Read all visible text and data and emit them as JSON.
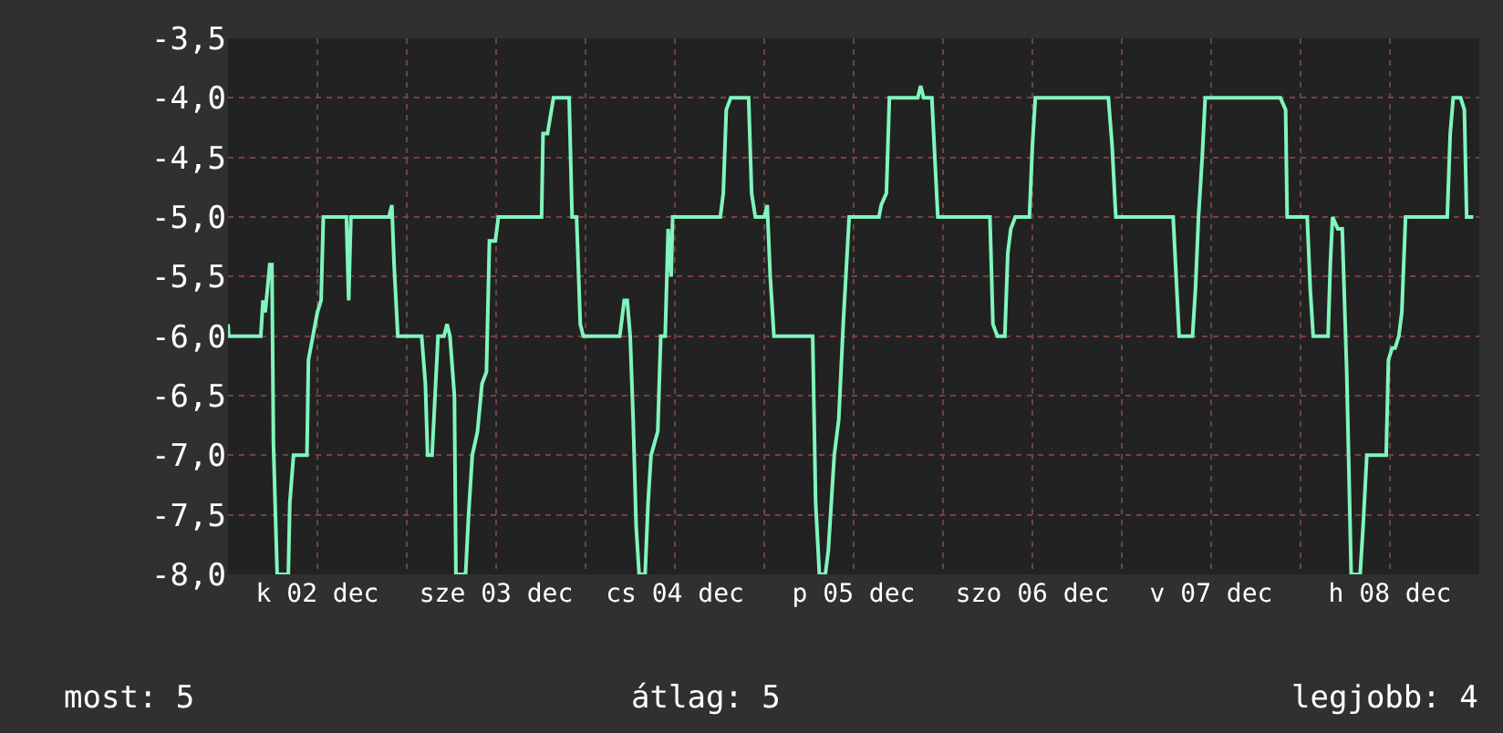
{
  "chart_data": {
    "type": "line",
    "annotations": [
      "most: 5",
      "átlag: 5",
      "legjobb: 4"
    ],
    "x": [
      "--12-02T00:00",
      "--12-02T00:06",
      "--12-02T04:24",
      "--12-02T04:42",
      "--12-02T05:00",
      "--12-02T05:36",
      "--12-02T05:54",
      "--12-02T06:06",
      "--12-02T06:36",
      "--12-02T08:06",
      "--12-02T08:18",
      "--12-02T08:48",
      "--12-02T10:36",
      "--12-02T10:48",
      "--12-02T11:24",
      "--12-02T12:00",
      "--12-02T12:30",
      "--12-02T12:48",
      "--12-02T15:54",
      "--12-02T16:12",
      "--12-02T16:30",
      "--12-02T21:36",
      "--12-02T22:00",
      "--12-02T22:18",
      "--12-02T22:48",
      "--12-03T02:00",
      "--12-03T02:30",
      "--12-03T02:48",
      "--12-03T03:24",
      "--12-03T04:12",
      "--12-03T05:00",
      "--12-03T05:24",
      "--12-03T05:48",
      "--12-03T06:24",
      "--12-03T06:36",
      "--12-03T07:54",
      "--12-03T08:18",
      "--12-03T08:48",
      "--12-03T09:30",
      "--12-03T10:06",
      "--12-03T10:42",
      "--12-03T11:06",
      "--12-03T11:54",
      "--12-03T12:18",
      "--12-03T18:06",
      "--12-03T18:18",
      "--12-03T18:54",
      "--12-03T19:42",
      "--12-03T21:48",
      "--12-03T22:12",
      "--12-03T22:48",
      "--12-03T23:18",
      "--12-03T23:42",
      "--12-04T04:36",
      "--12-04T05:12",
      "--12-04T05:36",
      "--12-04T06:00",
      "--12-04T06:24",
      "--12-04T06:48",
      "--12-04T07:12",
      "--12-04T08:00",
      "--12-04T08:24",
      "--12-04T08:48",
      "--12-04T09:42",
      "--12-04T10:06",
      "--12-04T10:42",
      "--12-04T11:06",
      "--12-04T11:30",
      "--12-04T11:42",
      "--12-04T18:06",
      "--12-04T18:30",
      "--12-04T18:54",
      "--12-04T19:30",
      "--12-04T21:54",
      "--12-04T22:18",
      "--12-04T22:48",
      "--12-05T00:00",
      "--12-05T00:24",
      "--12-05T00:48",
      "--12-05T01:18",
      "--12-05T06:30",
      "--12-05T06:54",
      "--12-05T07:24",
      "--12-05T08:12",
      "--12-05T08:36",
      "--12-05T09:24",
      "--12-05T10:00",
      "--12-05T10:36",
      "--12-05T11:24",
      "--12-05T15:24",
      "--12-05T15:42",
      "--12-05T16:24",
      "--12-05T16:48",
      "--12-05T20:36",
      "--12-05T21:00",
      "--12-05T21:24",
      "--12-05T22:30",
      "--12-05T22:54",
      "--12-05T23:18",
      "--12-06T06:18",
      "--12-06T06:42",
      "--12-06T07:18",
      "--12-06T08:18",
      "--12-06T08:42",
      "--12-06T09:06",
      "--12-06T09:42",
      "--12-06T11:36",
      "--12-06T12:00",
      "--12-06T12:24",
      "--12-06T22:12",
      "--12-06T22:42",
      "--12-06T23:12",
      "--12-07T06:54",
      "--12-07T07:18",
      "--12-07T07:42",
      "--12-07T09:30",
      "--12-07T09:54",
      "--12-07T10:18",
      "--12-07T10:48",
      "--12-07T11:12",
      "--12-07T21:18",
      "--12-07T22:00",
      "--12-07T22:12",
      "--12-08T00:54",
      "--12-08T01:18",
      "--12-08T01:42",
      "--12-08T03:42",
      "--12-08T04:00",
      "--12-08T04:18",
      "--12-08T05:00",
      "--12-08T05:36",
      "--12-08T06:12",
      "--12-08T06:48",
      "--12-08T08:00",
      "--12-08T08:24",
      "--12-08T08:54",
      "--12-08T11:30",
      "--12-08T11:48",
      "--12-08T12:18",
      "--12-08T12:42",
      "--12-08T13:12",
      "--12-08T13:36",
      "--12-08T14:06",
      "--12-08T19:42",
      "--12-08T20:06",
      "--12-08T20:30",
      "--12-08T21:30",
      "--12-08T22:00",
      "--12-08T22:18",
      "--12-08T23:12"
    ],
    "values": [
      -5.9,
      -6.0,
      -6.0,
      -5.7,
      -5.8,
      -5.4,
      -5.4,
      -6.9,
      -8.0,
      -8.0,
      -7.4,
      -7.0,
      -7.0,
      -6.2,
      -6.0,
      -5.8,
      -5.7,
      -5.0,
      -5.0,
      -5.7,
      -5.0,
      -5.0,
      -4.9,
      -5.4,
      -6.0,
      -6.0,
      -6.4,
      -7.0,
      -7.0,
      -6.0,
      -6.0,
      -5.9,
      -6.0,
      -6.5,
      -8.0,
      -8.0,
      -7.5,
      -7.0,
      -6.8,
      -6.4,
      -6.3,
      -5.2,
      -5.2,
      -5.0,
      -5.0,
      -4.3,
      -4.3,
      -4.0,
      -4.0,
      -5.0,
      -5.0,
      -5.9,
      -6.0,
      -6.0,
      -5.7,
      -5.7,
      -6.0,
      -6.7,
      -7.6,
      -8.0,
      -8.0,
      -7.4,
      -7.0,
      -6.8,
      -6.0,
      -6.0,
      -5.1,
      -5.5,
      -5.0,
      -5.0,
      -4.8,
      -4.1,
      -4.0,
      -4.0,
      -4.8,
      -5.0,
      -5.0,
      -4.9,
      -5.5,
      -6.0,
      -6.0,
      -7.4,
      -8.0,
      -8.0,
      -7.8,
      -7.0,
      -6.7,
      -5.9,
      -5.0,
      -5.0,
      -4.9,
      -4.8,
      -4.0,
      -4.0,
      -3.9,
      -4.0,
      -4.0,
      -4.5,
      -5.0,
      -5.0,
      -5.9,
      -6.0,
      -6.0,
      -5.3,
      -5.1,
      -5.0,
      -5.0,
      -4.4,
      -4.0,
      -4.0,
      -4.4,
      -5.0,
      -5.0,
      -5.5,
      -6.0,
      -6.0,
      -5.6,
      -5.0,
      -4.5,
      -4.0,
      -4.0,
      -4.1,
      -5.0,
      -5.0,
      -5.6,
      -6.0,
      -6.0,
      -5.4,
      -5.0,
      -5.1,
      -5.1,
      -6.3,
      -8.0,
      -8.0,
      -7.6,
      -7.0,
      -7.0,
      -6.2,
      -6.1,
      -6.1,
      -6.0,
      -5.8,
      -5.0,
      -5.0,
      -4.3,
      -4.0,
      -4.0,
      -4.1,
      -5.0,
      -5.0
    ],
    "color": "#80f5bd",
    "xlim": [
      "--12-02T00:00",
      "--12-09T00:00"
    ],
    "xticks": [
      {
        "value": "--12-02T00:00",
        "label": null
      },
      {
        "value": "--12-02T12:00",
        "label": "k 02 dec"
      },
      {
        "value": "--12-03T00:00",
        "label": null
      },
      {
        "value": "--12-03T12:00",
        "label": "sze 03 dec"
      },
      {
        "value": "--12-04T00:00",
        "label": null
      },
      {
        "value": "--12-04T12:00",
        "label": "cs 04 dec"
      },
      {
        "value": "--12-05T00:00",
        "label": null
      },
      {
        "value": "--12-05T12:00",
        "label": "p 05 dec"
      },
      {
        "value": "--12-06T00:00",
        "label": null
      },
      {
        "value": "--12-06T12:00",
        "label": "szo 06 dec"
      },
      {
        "value": "--12-07T00:00",
        "label": null
      },
      {
        "value": "--12-07T12:00",
        "label": "v 07 dec"
      },
      {
        "value": "--12-08T00:00",
        "label": null
      },
      {
        "value": "--12-08T12:00",
        "label": "h 08 dec"
      }
    ],
    "ylim": [
      -8.0,
      -3.5
    ],
    "yticks": [
      {
        "value": -3.5,
        "label": "-3,5"
      },
      {
        "value": -4.0,
        "label": "-4,0"
      },
      {
        "value": -4.5,
        "label": "-4,5"
      },
      {
        "value": -5.0,
        "label": "-5,0"
      },
      {
        "value": -5.5,
        "label": "-5,5"
      },
      {
        "value": -6.0,
        "label": "-6,0"
      },
      {
        "value": -6.5,
        "label": "-6,5"
      },
      {
        "value": -7.0,
        "label": "-7,0"
      },
      {
        "value": -7.5,
        "label": "-7,5"
      },
      {
        "value": -8.0,
        "label": "-8,0"
      }
    ],
    "grid": true,
    "marker": "none",
    "line_style": "solid"
  }
}
